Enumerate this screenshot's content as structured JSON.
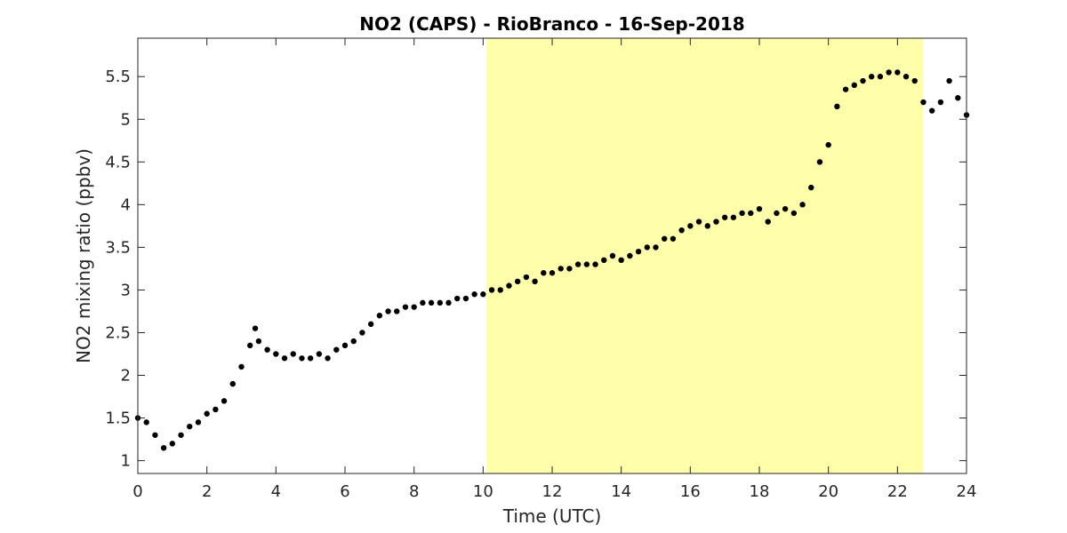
{
  "chart_data": {
    "type": "scatter",
    "title": "NO2 (CAPS) - RioBranco - 16-Sep-2018",
    "xlabel": "Time (UTC)",
    "ylabel": "NO2 mixing ratio (ppbv)",
    "xlim": [
      0,
      24
    ],
    "ylim": [
      0.85,
      5.95
    ],
    "xticks": [
      0,
      2,
      4,
      6,
      8,
      10,
      12,
      14,
      16,
      18,
      20,
      22,
      24
    ],
    "xtick_labels": [
      "0",
      "2",
      "4",
      "6",
      "8",
      "10",
      "12",
      "14",
      "16",
      "18",
      "20",
      "22",
      "24"
    ],
    "yticks": [
      1,
      1.5,
      2,
      2.5,
      3,
      3.5,
      4,
      4.5,
      5,
      5.5
    ],
    "ytick_labels": [
      "1",
      "1.5",
      "2",
      "2.5",
      "3",
      "3.5",
      "4",
      "4.5",
      "5",
      "5.5"
    ],
    "grid": false,
    "highlight_span": {
      "x_start": 10.1,
      "x_end": 22.75,
      "color": "#ffffaa"
    },
    "marker_color": "#000000",
    "series": [
      {
        "x": [
          0.0,
          0.25,
          0.5,
          0.75,
          1.0,
          1.25,
          1.5,
          1.75,
          2.0,
          2.25,
          2.5,
          2.75,
          3.0,
          3.25,
          3.4,
          3.5,
          3.75,
          4.0,
          4.25,
          4.5,
          4.75,
          5.0,
          5.25,
          5.5,
          5.75,
          6.0,
          6.25,
          6.5,
          6.75,
          7.0,
          7.25,
          7.5,
          7.75,
          8.0,
          8.25,
          8.5,
          8.75,
          9.0,
          9.25,
          9.5,
          9.75,
          10.0,
          10.25,
          10.5,
          10.75,
          11.0,
          11.25,
          11.5,
          11.75,
          12.0,
          12.25,
          12.5,
          12.75,
          13.0,
          13.25,
          13.5,
          13.75,
          14.0,
          14.25,
          14.5,
          14.75,
          15.0,
          15.25,
          15.5,
          15.75,
          16.0,
          16.25,
          16.5,
          16.75,
          17.0,
          17.25,
          17.5,
          17.75,
          18.0,
          18.25,
          18.5,
          18.75,
          19.0,
          19.25,
          19.5,
          19.75,
          20.0,
          20.25,
          20.5,
          20.75,
          21.0,
          21.25,
          21.5,
          21.75,
          22.0,
          22.25,
          22.5,
          22.75,
          23.0,
          23.25,
          23.5,
          23.75,
          24.0
        ],
        "y": [
          1.5,
          1.45,
          1.3,
          1.15,
          1.2,
          1.3,
          1.4,
          1.45,
          1.55,
          1.6,
          1.7,
          1.9,
          2.1,
          2.35,
          2.55,
          2.4,
          2.3,
          2.25,
          2.2,
          2.25,
          2.2,
          2.2,
          2.25,
          2.2,
          2.3,
          2.35,
          2.4,
          2.5,
          2.6,
          2.7,
          2.75,
          2.75,
          2.8,
          2.8,
          2.85,
          2.85,
          2.85,
          2.85,
          2.9,
          2.9,
          2.95,
          2.95,
          3.0,
          3.0,
          3.05,
          3.1,
          3.15,
          3.1,
          3.2,
          3.2,
          3.25,
          3.25,
          3.3,
          3.3,
          3.3,
          3.35,
          3.4,
          3.35,
          3.4,
          3.45,
          3.5,
          3.5,
          3.6,
          3.6,
          3.7,
          3.75,
          3.8,
          3.75,
          3.8,
          3.85,
          3.85,
          3.9,
          3.9,
          3.95,
          3.8,
          3.9,
          3.95,
          3.9,
          4.0,
          4.2,
          4.5,
          4.7,
          5.15,
          5.35,
          5.4,
          5.45,
          5.5,
          5.5,
          5.55,
          5.55,
          5.5,
          5.45,
          5.2,
          5.1,
          5.2,
          5.45,
          5.25,
          5.05
        ]
      }
    ]
  }
}
